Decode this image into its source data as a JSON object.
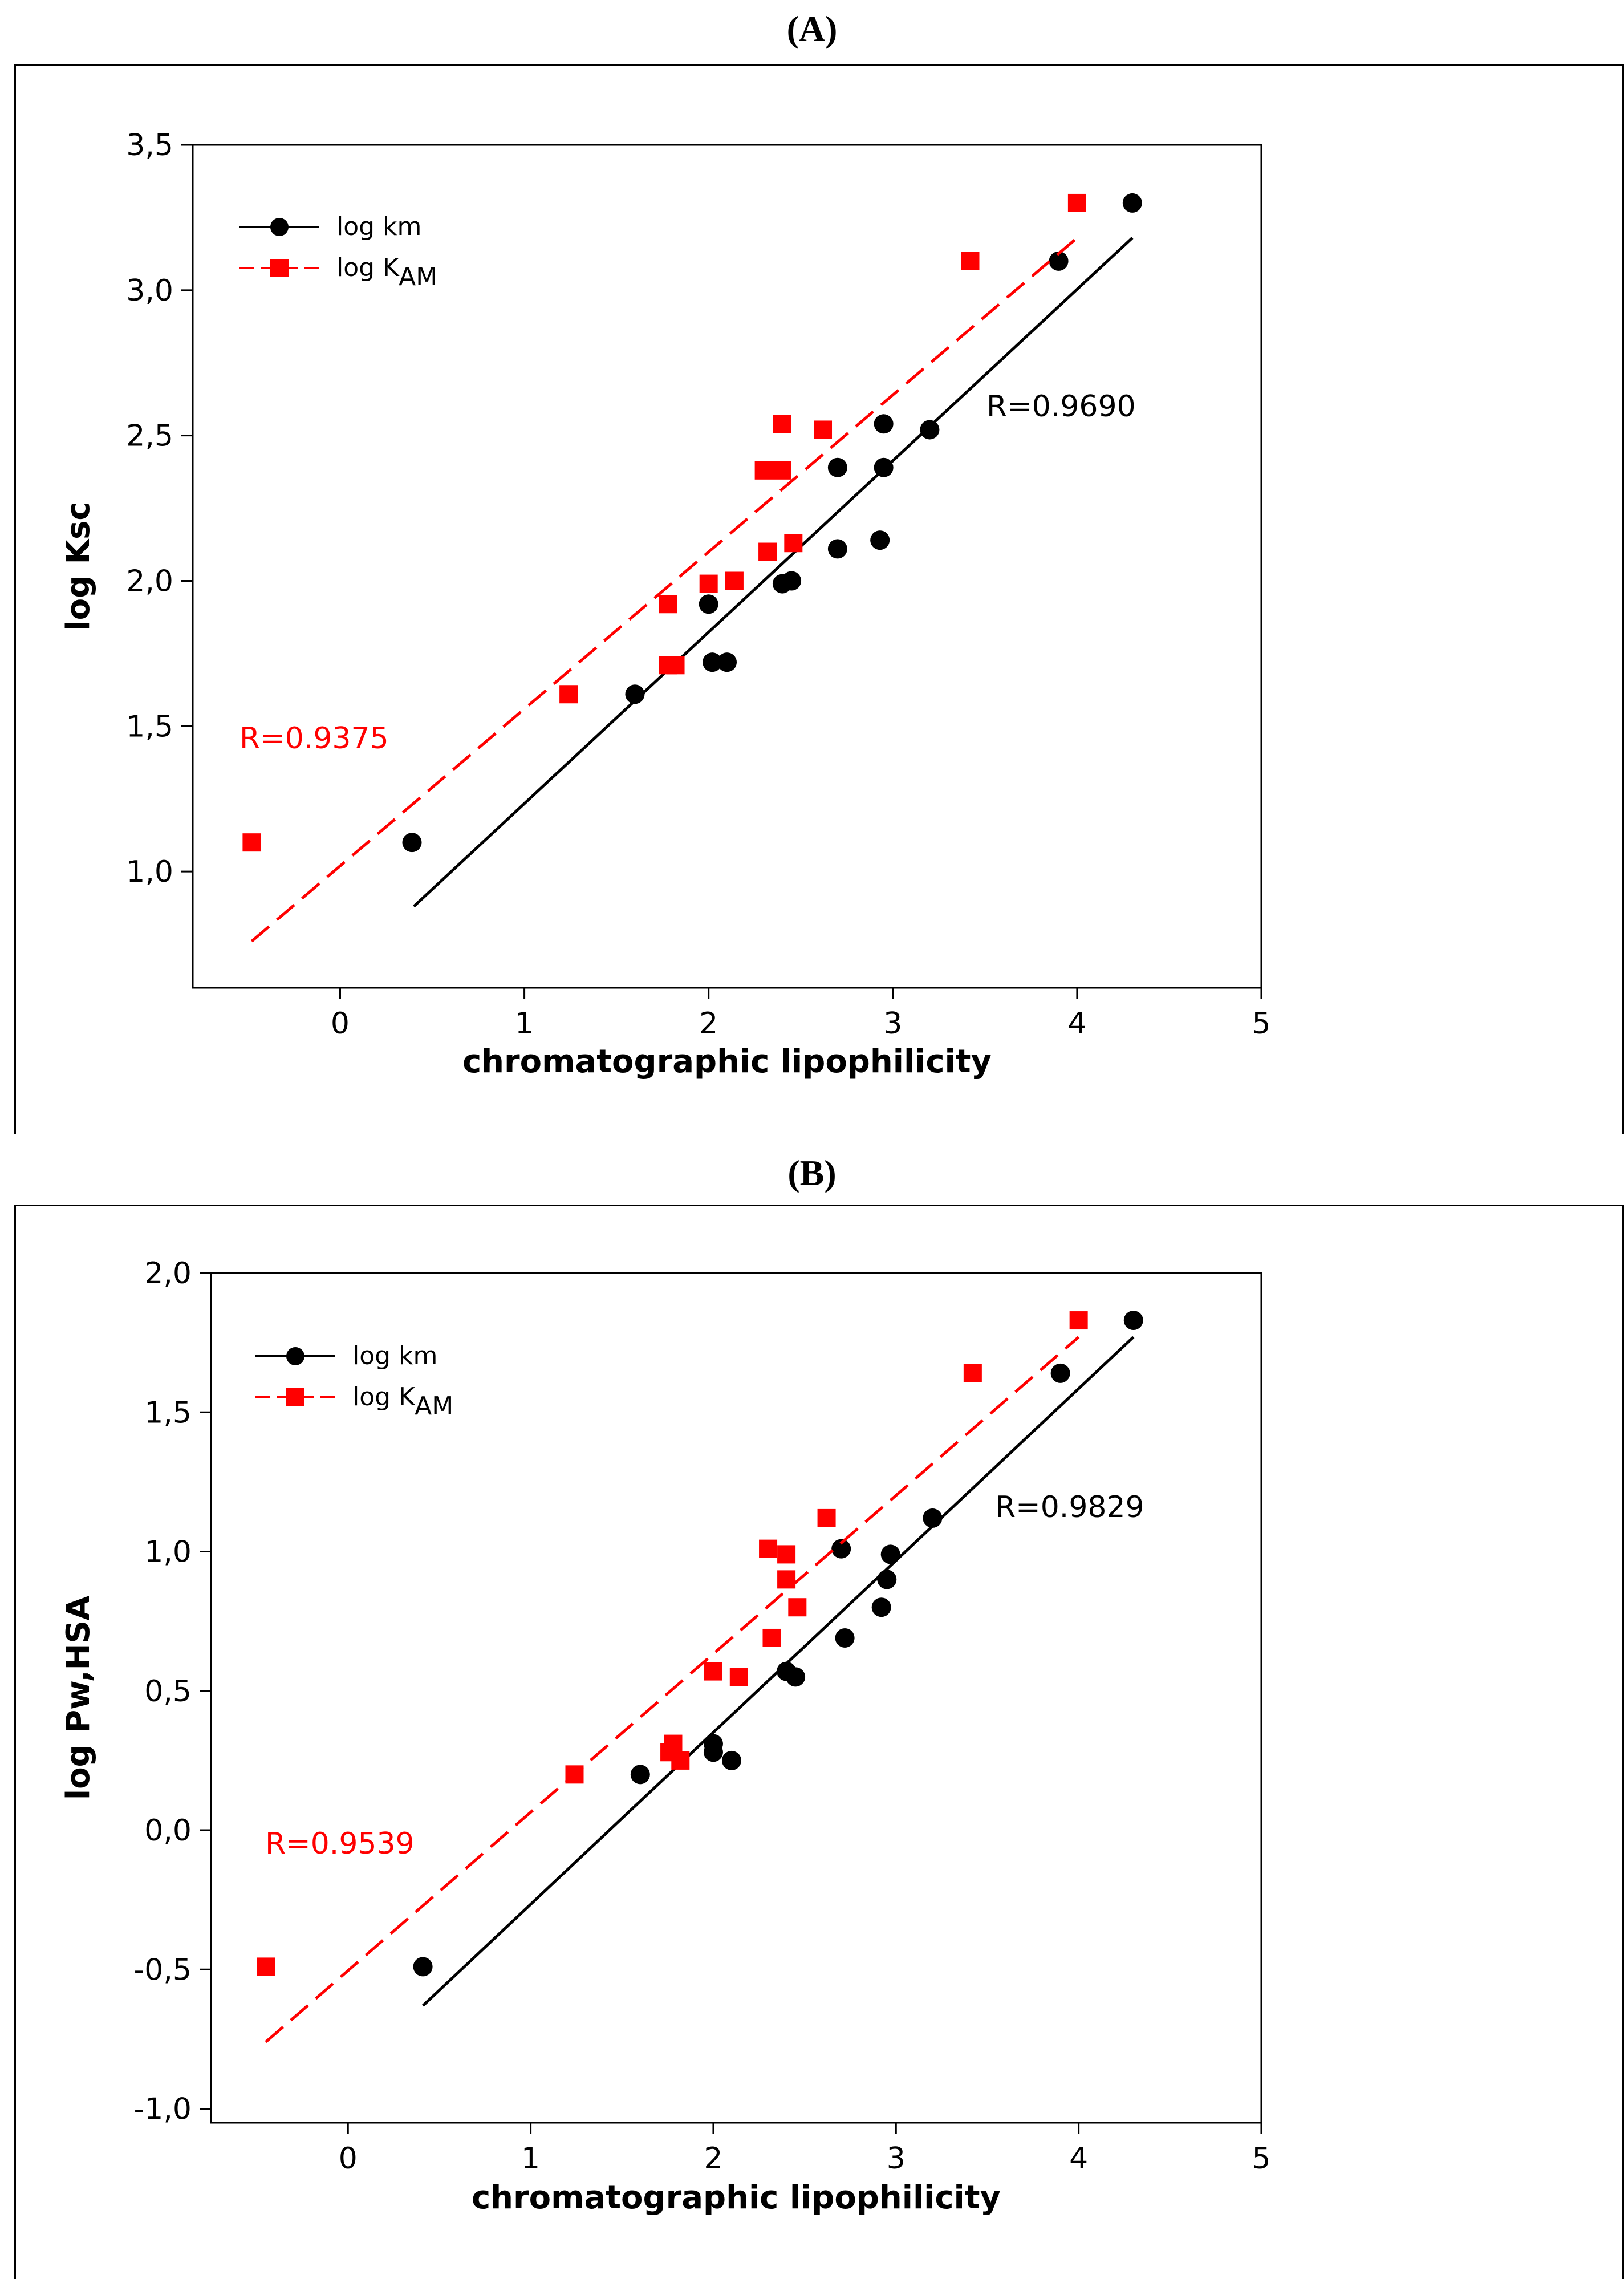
{
  "colors": {
    "series1": "#000000",
    "series2": "#ff0000"
  },
  "chart_data": [
    {
      "panel": "(A)",
      "type": "scatter",
      "xlabel": "chromatographic lipophilicity",
      "ylabel": "log Ksc",
      "xlim": [
        -0.8,
        5.0
      ],
      "ylim": [
        0.6,
        3.5
      ],
      "xticks": [
        0,
        1,
        2,
        3,
        4,
        5
      ],
      "xtick_labels": [
        "0",
        "1",
        "2",
        "3",
        "4",
        "5"
      ],
      "yticks": [
        1.0,
        1.5,
        2.0,
        2.5,
        3.0,
        3.5
      ],
      "ytick_labels": [
        "1,0",
        "1,5",
        "2,0",
        "2,5",
        "3,0",
        "3,5"
      ],
      "legend": {
        "position": "top-left",
        "entries": [
          "log km",
          "log K"
        ],
        "subscript": "AM"
      },
      "series": [
        {
          "name": "log km",
          "marker": "circle",
          "line": "solid",
          "color": "#000000",
          "x": [
            0.39,
            1.6,
            2.0,
            2.02,
            2.1,
            2.4,
            2.45,
            2.7,
            2.7,
            2.93,
            2.95,
            2.95,
            3.2,
            3.9,
            4.3
          ],
          "y": [
            1.1,
            1.61,
            1.92,
            1.72,
            1.72,
            1.99,
            2.0,
            2.11,
            2.39,
            2.14,
            2.39,
            2.54,
            2.52,
            3.1,
            3.3
          ],
          "fit": {
            "x": [
              0.4,
              4.3
            ],
            "y": [
              0.88,
              3.18
            ]
          },
          "r_label": "R=0.9690"
        },
        {
          "name": "log K_AM",
          "marker": "square",
          "line": "dashed",
          "color": "#ff0000",
          "x": [
            -0.48,
            1.24,
            1.78,
            1.78,
            1.82,
            2.0,
            2.14,
            2.3,
            2.32,
            2.4,
            2.4,
            2.46,
            2.62,
            3.42,
            4.0
          ],
          "y": [
            1.1,
            1.61,
            1.92,
            1.71,
            1.71,
            1.99,
            2.0,
            2.38,
            2.1,
            2.38,
            2.54,
            2.13,
            2.52,
            3.1,
            3.3
          ],
          "fit": {
            "x": [
              -0.48,
              4.0
            ],
            "y": [
              0.76,
              3.18
            ]
          },
          "r_label": "R=0.9375"
        }
      ]
    },
    {
      "panel": "(B)",
      "type": "scatter",
      "xlabel": "chromatographic lipophilicity",
      "ylabel": "log Pw,HSA",
      "xlim": [
        -0.75,
        5.0
      ],
      "ylim": [
        -1.05,
        2.0
      ],
      "xticks": [
        0,
        1,
        2,
        3,
        4,
        5
      ],
      "xtick_labels": [
        "0",
        "1",
        "2",
        "3",
        "4",
        "5"
      ],
      "yticks": [
        -1.0,
        -0.5,
        0.0,
        0.5,
        1.0,
        1.5,
        2.0
      ],
      "ytick_labels": [
        "-1,0",
        "-0,5",
        "0,0",
        "0,5",
        "1,0",
        "1,5",
        "2,0"
      ],
      "legend": {
        "position": "top-left",
        "entries": [
          "log km",
          "log K"
        ],
        "subscript": "AM"
      },
      "series": [
        {
          "name": "log km",
          "marker": "circle",
          "line": "solid",
          "color": "#000000",
          "x": [
            0.41,
            1.6,
            2.0,
            2.0,
            2.1,
            2.4,
            2.45,
            2.7,
            2.72,
            2.92,
            2.95,
            2.97,
            3.2,
            3.9,
            4.3
          ],
          "y": [
            -0.49,
            0.2,
            0.31,
            0.28,
            0.25,
            0.57,
            0.55,
            1.01,
            0.69,
            0.8,
            0.9,
            0.99,
            1.12,
            1.64,
            1.83
          ],
          "fit": {
            "x": [
              0.41,
              4.3
            ],
            "y": [
              -0.63,
              1.77
            ]
          },
          "r_label": "R=0.9829"
        },
        {
          "name": "log K_AM",
          "marker": "square",
          "line": "dashed",
          "color": "#ff0000",
          "x": [
            -0.45,
            1.24,
            1.76,
            1.78,
            1.82,
            2.0,
            2.14,
            2.3,
            2.32,
            2.4,
            2.4,
            2.46,
            2.62,
            3.42,
            4.0
          ],
          "y": [
            -0.49,
            0.2,
            0.28,
            0.31,
            0.25,
            0.57,
            0.55,
            1.01,
            0.69,
            0.99,
            0.9,
            0.8,
            1.12,
            1.64,
            1.83
          ],
          "fit": {
            "x": [
              -0.45,
              4.0
            ],
            "y": [
              -0.76,
              1.77
            ]
          },
          "r_label": "R=0.9539"
        }
      ]
    }
  ]
}
